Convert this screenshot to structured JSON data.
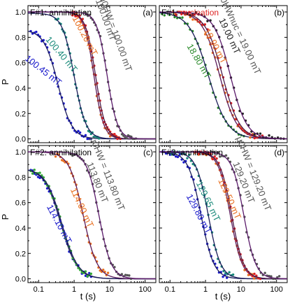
{
  "figure": {
    "xlabel": "t (s)",
    "ylabel": "P",
    "x_ticks": [
      "0.1",
      "1",
      "10",
      "100"
    ],
    "y_ticks": [
      "0.0",
      "0.2",
      "0.4",
      "0.6",
      "0.8",
      "1.0"
    ]
  },
  "chart_data": [
    {
      "type": "scatter",
      "panel": "a",
      "title_prefix": "F#1: ",
      "title_main": "annihilation",
      "title_color": "#000000",
      "letter": "(a)",
      "xscale": "log",
      "xlim": [
        0.05,
        200
      ],
      "ylim": [
        -0.03,
        1.05
      ],
      "field_label": "μ0HW = 100.00 mT",
      "series": [
        {
          "name": "100.45 mT",
          "color": "#1a1acc",
          "fit_color": "#1c1c5a",
          "t50": 0.35,
          "k": 2.2,
          "p0": 0.86,
          "t_start": 0.06,
          "t_end": 3.0,
          "label_at": [
            0.12,
            0.52
          ],
          "label_rot": 38
        },
        {
          "name": "100.40 mT",
          "color": "#1a8a7a",
          "fit_color": "#1c1c5a",
          "t50": 1.0,
          "k": 2.6,
          "p0": 0.99,
          "t_start": 0.3,
          "t_end": 5.0,
          "label_at": [
            0.38,
            0.65
          ],
          "label_rot": 50
        },
        {
          "name": "100.20 mT",
          "color": "#e87020",
          "fit_color": "#5a1a5a",
          "t50": 3.6,
          "k": 3.2,
          "p0": 1.0,
          "t_start": 0.9,
          "t_end": 16.0,
          "label_at": [
            1.7,
            0.8
          ],
          "label_rot": 62
        },
        {
          "name": "",
          "color": "#dd2222",
          "fit_color": "#4a1a4a",
          "t50": 4.0,
          "k": 3.1,
          "p0": 1.0,
          "t_start": 0.9,
          "t_end": 20.0,
          "label_at": null,
          "label_rot": 0
        },
        {
          "name": "100.00 mT",
          "color": "#555555",
          "fit_color": "#5a1a6a",
          "t50": 8.5,
          "k": 3.0,
          "p0": 1.0,
          "t_start": 2.0,
          "t_end": 55.0,
          "label_at": [
            6.5,
            0.93
          ],
          "label_rot": 70
        }
      ]
    },
    {
      "type": "scatter",
      "panel": "b",
      "title_prefix": "F#1: ",
      "title_main": "nucleation",
      "title_color": "#dd2222",
      "letter": "(b)",
      "xscale": "log",
      "xlim": [
        0.05,
        200
      ],
      "ylim": [
        -0.03,
        1.05
      ],
      "field_label": "μ0HWnuc = 19.00 mT",
      "series": [
        {
          "name": "18.80 mT",
          "color": "#2a8a2a",
          "fit_color": "#1c1c5a",
          "t50": 1.2,
          "k": 1.6,
          "p0": 1.0,
          "t_start": 0.05,
          "t_end": 12.0,
          "label_at": [
            0.55,
            0.6
          ],
          "label_rot": 60
        },
        {
          "name": "18.90 mT",
          "color": "#e87020",
          "fit_color": "#5a1a5a",
          "t50": 2.5,
          "k": 1.8,
          "p0": 1.0,
          "t_start": 0.12,
          "t_end": 25.0,
          "label_at": [
            1.6,
            0.72
          ],
          "label_rot": 62
        },
        {
          "name": "",
          "color": "#dd2222",
          "fit_color": "#4a1a4a",
          "t50": 3.0,
          "k": 1.8,
          "p0": 1.0,
          "t_start": 0.15,
          "t_end": 40.0,
          "label_at": null,
          "label_rot": 0
        },
        {
          "name": "19.00 mT",
          "color": "#222222",
          "fit_color": "#5a1a6a",
          "t50": 5.0,
          "k": 1.9,
          "p0": 1.0,
          "t_start": 0.3,
          "t_end": 160.0,
          "label_at": [
            4.0,
            0.8
          ],
          "label_rot": 65
        }
      ]
    },
    {
      "type": "scatter",
      "panel": "c",
      "title_prefix": "F#2: ",
      "title_main": "annihilation",
      "title_color": "#000000",
      "letter": "(c)",
      "xscale": "log",
      "xlim": [
        0.05,
        200
      ],
      "ylim": [
        -0.03,
        1.05
      ],
      "field_label": "μ0HW = 113.80 mT",
      "series": [
        {
          "name": "114.10 mT",
          "color": "#1a1acc",
          "fit_color": "#1c1c5a",
          "t50": 0.42,
          "k": 1.9,
          "p0": 0.87,
          "t_start": 0.06,
          "t_end": 3.0,
          "label_at": [
            0.32,
            0.42
          ],
          "label_rot": 62
        },
        {
          "name": "",
          "color": "#33aa33",
          "fit_color": "#1c1c5a",
          "t50": 0.45,
          "k": 1.9,
          "p0": 0.87,
          "t_start": 0.06,
          "t_end": 3.0,
          "label_at": null,
          "label_rot": 0
        },
        {
          "name": "114.00 mT",
          "color": "#e87020",
          "fit_color": "#5a1a5a",
          "t50": 1.8,
          "k": 2.2,
          "p0": 1.0,
          "t_start": 0.3,
          "t_end": 9.0,
          "label_at": [
            1.4,
            0.55
          ],
          "label_rot": 65
        },
        {
          "name": "113.80 mT",
          "color": "#555555",
          "fit_color": "#5a1a6a",
          "t50": 5.0,
          "k": 2.5,
          "p0": 1.0,
          "t_start": 0.8,
          "t_end": 40.0,
          "label_at": [
            3.8,
            0.75
          ],
          "label_rot": 68
        }
      ]
    },
    {
      "type": "scatter",
      "panel": "d",
      "title_prefix": "F#3: ",
      "title_main": "annihilation",
      "title_color": "#000000",
      "letter": "(d)",
      "xscale": "log",
      "xlim": [
        0.05,
        200
      ],
      "ylim": [
        -0.03,
        1.05
      ],
      "field_label": "μ0HW = 129.20 mT",
      "series": [
        {
          "name": "129.80 mT",
          "color": "#1a1acc",
          "fit_color": "#1c1c5a",
          "t50": 0.75,
          "k": 2.4,
          "p0": 1.0,
          "t_start": 0.06,
          "t_end": 4.0,
          "label_at": [
            0.55,
            0.5
          ],
          "label_rot": 62
        },
        {
          "name": "129.65 mT",
          "color": "#1a8a7a",
          "fit_color": "#1c1c5a",
          "t50": 1.2,
          "k": 2.5,
          "p0": 1.0,
          "t_start": 0.1,
          "t_end": 6.0,
          "label_at": [
            1.0,
            0.6
          ],
          "label_rot": 64
        },
        {
          "name": "129.50 mT",
          "color": "#e87020",
          "fit_color": "#5a1a5a",
          "t50": 5.0,
          "k": 2.6,
          "p0": 1.0,
          "t_start": 0.5,
          "t_end": 30.0,
          "label_at": [
            4.0,
            0.62
          ],
          "label_rot": 66
        },
        {
          "name": "",
          "color": "#dd2222",
          "fit_color": "#4a1a4a",
          "t50": 5.5,
          "k": 2.6,
          "p0": 1.0,
          "t_start": 0.5,
          "t_end": 35.0,
          "label_at": null,
          "label_rot": 0
        },
        {
          "name": "129.20 mT",
          "color": "#555555",
          "fit_color": "#5a1a6a",
          "t50": 12.0,
          "k": 2.6,
          "p0": 1.0,
          "t_start": 1.5,
          "t_end": 120.0,
          "label_at": [
            10.0,
            0.75
          ],
          "label_rot": 68
        }
      ]
    }
  ]
}
